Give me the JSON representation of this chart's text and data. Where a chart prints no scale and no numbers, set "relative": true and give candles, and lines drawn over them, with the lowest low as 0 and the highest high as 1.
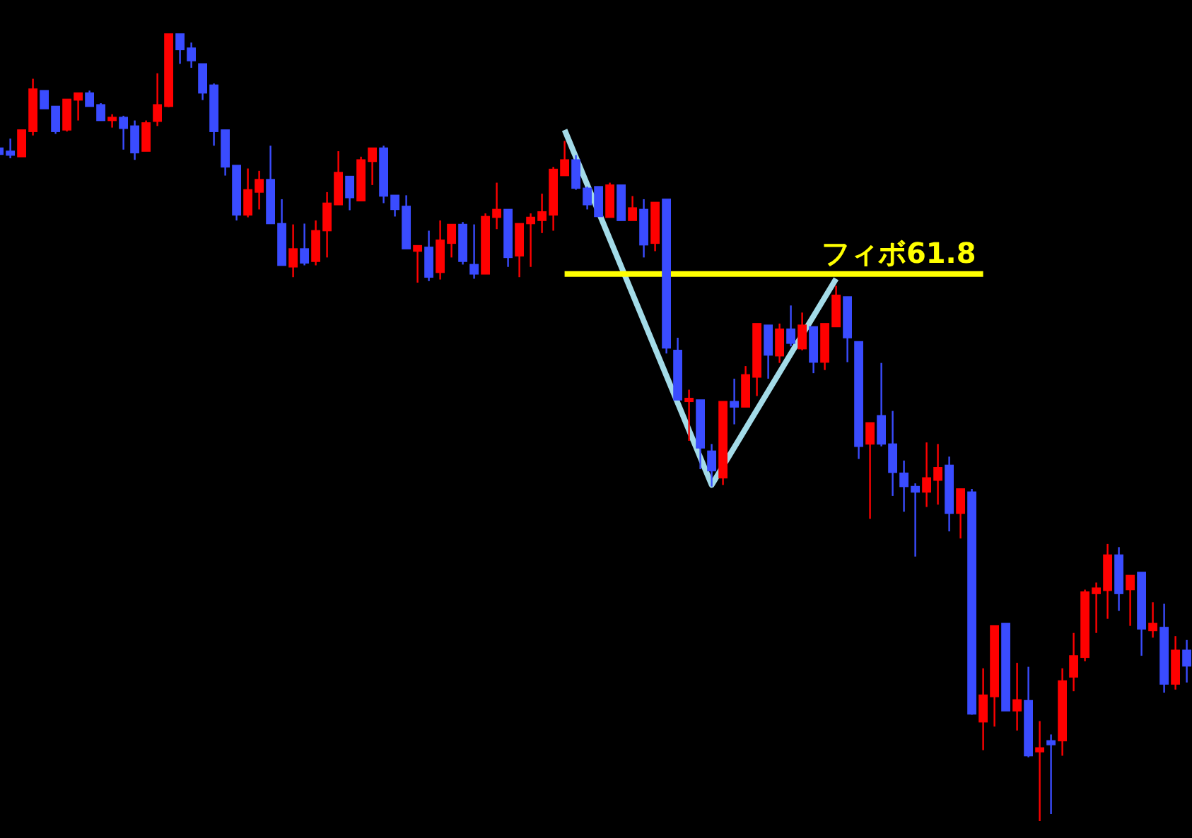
{
  "chart_data": {
    "type": "candlestick",
    "relative": true,
    "categories": [
      null,
      null,
      null,
      null,
      null,
      null,
      null,
      null,
      null,
      null,
      null,
      null,
      null,
      null,
      null,
      null,
      null,
      null,
      null,
      null,
      null,
      null,
      null,
      null,
      null,
      null,
      null,
      null,
      null,
      null,
      null,
      null,
      null,
      null,
      null,
      null,
      null,
      null,
      null,
      null,
      null,
      null,
      null,
      null,
      null,
      null,
      null,
      null,
      null,
      null,
      null,
      null,
      null,
      null,
      null,
      null,
      null,
      null,
      null,
      null,
      null,
      null,
      null,
      null,
      null,
      null,
      null,
      null,
      null,
      null,
      null,
      null,
      null,
      null,
      null,
      null,
      null,
      null,
      null,
      null,
      null,
      null,
      null,
      null,
      null,
      null,
      null,
      null,
      null,
      null,
      null,
      null,
      null,
      null,
      null,
      null,
      null,
      null,
      null,
      null,
      null,
      null,
      null,
      null,
      null,
      null
    ],
    "ohlc": [
      [
        0.855,
        0.856,
        0.846,
        0.847
      ],
      [
        0.851,
        0.867,
        0.842,
        0.846
      ],
      [
        0.844,
        0.878,
        0.844,
        0.878
      ],
      [
        0.876,
        0.943,
        0.871,
        0.93
      ],
      [
        0.928,
        0.928,
        0.905,
        0.905
      ],
      [
        0.908,
        0.908,
        0.873,
        0.876
      ],
      [
        0.878,
        0.917,
        0.876,
        0.917
      ],
      [
        0.916,
        0.925,
        0.89,
        0.925
      ],
      [
        0.925,
        0.928,
        0.908,
        0.908
      ],
      [
        0.91,
        0.912,
        0.89,
        0.89
      ],
      [
        0.89,
        0.898,
        0.881,
        0.894
      ],
      [
        0.894,
        0.896,
        0.853,
        0.88
      ],
      [
        0.883,
        0.89,
        0.84,
        0.849
      ],
      [
        0.851,
        0.89,
        0.851,
        0.887
      ],
      [
        0.889,
        0.95,
        0.883,
        0.91
      ],
      [
        0.908,
        1.0,
        0.907,
        1.0
      ],
      [
        1.0,
        1.0,
        0.962,
        0.98
      ],
      [
        0.982,
        0.989,
        0.957,
        0.966
      ],
      [
        0.962,
        0.962,
        0.916,
        0.925
      ],
      [
        0.935,
        0.937,
        0.858,
        0.876
      ],
      [
        0.878,
        0.878,
        0.82,
        0.831
      ],
      [
        0.833,
        0.833,
        0.763,
        0.77
      ],
      [
        0.77,
        0.829,
        0.767,
        0.802
      ],
      [
        0.799,
        0.826,
        0.777,
        0.815
      ],
      [
        0.815,
        0.858,
        0.759,
        0.759
      ],
      [
        0.759,
        0.79,
        0.706,
        0.706
      ],
      [
        0.704,
        0.758,
        0.691,
        0.727
      ],
      [
        0.727,
        0.759,
        0.706,
        0.709
      ],
      [
        0.711,
        0.763,
        0.706,
        0.75
      ],
      [
        0.75,
        0.799,
        0.716,
        0.785
      ],
      [
        0.783,
        0.851,
        0.783,
        0.824
      ],
      [
        0.819,
        0.819,
        0.776,
        0.792
      ],
      [
        0.788,
        0.844,
        0.788,
        0.84
      ],
      [
        0.838,
        0.855,
        0.808,
        0.855
      ],
      [
        0.855,
        0.858,
        0.785,
        0.794
      ],
      [
        0.795,
        0.795,
        0.768,
        0.777
      ],
      [
        0.781,
        0.795,
        0.727,
        0.727
      ],
      [
        0.724,
        0.731,
        0.684,
        0.731
      ],
      [
        0.729,
        0.75,
        0.686,
        0.691
      ],
      [
        0.697,
        0.763,
        0.688,
        0.738
      ],
      [
        0.734,
        0.758,
        0.716,
        0.758
      ],
      [
        0.758,
        0.761,
        0.707,
        0.711
      ],
      [
        0.707,
        0.758,
        0.689,
        0.695
      ],
      [
        0.695,
        0.772,
        0.695,
        0.768
      ],
      [
        0.767,
        0.811,
        0.752,
        0.777
      ],
      [
        0.777,
        0.777,
        0.704,
        0.716
      ],
      [
        0.718,
        0.759,
        0.691,
        0.759
      ],
      [
        0.759,
        0.772,
        0.704,
        0.767
      ],
      [
        0.763,
        0.797,
        0.747,
        0.774
      ],
      [
        0.77,
        0.831,
        0.75,
        0.828
      ],
      [
        0.82,
        0.864,
        0.82,
        0.84
      ],
      [
        0.84,
        0.846,
        0.802,
        0.804
      ],
      [
        0.804,
        0.806,
        0.777,
        0.783
      ],
      [
        0.806,
        0.806,
        0.768,
        0.768
      ],
      [
        0.767,
        0.811,
        0.767,
        0.808
      ],
      [
        0.808,
        0.808,
        0.763,
        0.763
      ],
      [
        0.763,
        0.794,
        0.763,
        0.779
      ],
      [
        0.777,
        0.79,
        0.716,
        0.732
      ],
      [
        0.734,
        0.786,
        0.724,
        0.786
      ],
      [
        0.79,
        0.79,
        0.594,
        0.601
      ],
      [
        0.598,
        0.614,
        0.535,
        0.535
      ],
      [
        0.533,
        0.548,
        0.483,
        0.537
      ],
      [
        0.535,
        0.535,
        0.447,
        0.474
      ],
      [
        0.47,
        0.479,
        0.425,
        0.445
      ],
      [
        0.436,
        0.533,
        0.427,
        0.533
      ],
      [
        0.533,
        0.562,
        0.504,
        0.526
      ],
      [
        0.526,
        0.578,
        0.526,
        0.567
      ],
      [
        0.564,
        0.632,
        0.54,
        0.632
      ],
      [
        0.63,
        0.63,
        0.562,
        0.592
      ],
      [
        0.591,
        0.632,
        0.582,
        0.625
      ],
      [
        0.625,
        0.655,
        0.603,
        0.607
      ],
      [
        0.6,
        0.646,
        0.598,
        0.63
      ],
      [
        0.628,
        0.628,
        0.569,
        0.583
      ],
      [
        0.583,
        0.632,
        0.573,
        0.632
      ],
      [
        0.628,
        0.68,
        0.628,
        0.668
      ],
      [
        0.666,
        0.666,
        0.583,
        0.614
      ],
      [
        0.609,
        0.609,
        0.46,
        0.476
      ],
      [
        0.479,
        0.506,
        0.384,
        0.506
      ],
      [
        0.515,
        0.582,
        0.476,
        0.479
      ],
      [
        0.479,
        0.521,
        0.413,
        0.443
      ],
      [
        0.442,
        0.458,
        0.393,
        0.425
      ],
      [
        0.425,
        0.429,
        0.336,
        0.418
      ],
      [
        0.418,
        0.481,
        0.399,
        0.436
      ],
      [
        0.433,
        0.479,
        0.402,
        0.449
      ],
      [
        0.452,
        0.463,
        0.368,
        0.391
      ],
      [
        0.391,
        0.422,
        0.359,
        0.422
      ],
      [
        0.418,
        0.422,
        0.135,
        0.136
      ],
      [
        0.126,
        0.194,
        0.09,
        0.16
      ],
      [
        0.158,
        0.248,
        0.12,
        0.248
      ],
      [
        0.251,
        0.251,
        0.14,
        0.14
      ],
      [
        0.14,
        0.201,
        0.115,
        0.154
      ],
      [
        0.153,
        0.196,
        0.081,
        0.083
      ],
      [
        0.088,
        0.127,
        0.0,
        0.093
      ],
      [
        0.102,
        0.11,
        0.009,
        0.097
      ],
      [
        0.102,
        0.194,
        0.083,
        0.178
      ],
      [
        0.183,
        0.239,
        0.165,
        0.21
      ],
      [
        0.208,
        0.294,
        0.203,
        0.291
      ],
      [
        0.289,
        0.303,
        0.239,
        0.296
      ],
      [
        0.293,
        0.352,
        0.257,
        0.338
      ],
      [
        0.338,
        0.348,
        0.267,
        0.289
      ],
      [
        0.294,
        0.312,
        0.248,
        0.312
      ],
      [
        0.316,
        0.316,
        0.21,
        0.244
      ],
      [
        0.242,
        0.278,
        0.233,
        0.251
      ],
      [
        0.246,
        0.276,
        0.163,
        0.174
      ],
      [
        0.174,
        0.235,
        0.167,
        0.217
      ],
      [
        0.217,
        0.23,
        0.176,
        0.197
      ]
    ],
    "colors": [
      "#3a4cff",
      "#3a4cff",
      "#ff0000",
      "#ff0000",
      "#3a4cff",
      "#3a4cff",
      "#ff0000",
      "#ff0000",
      "#3a4cff",
      "#3a4cff",
      "#ff0000",
      "#3a4cff",
      "#3a4cff",
      "#ff0000",
      "#ff0000",
      "#ff0000",
      "#3a4cff",
      "#3a4cff",
      "#3a4cff",
      "#3a4cff",
      "#3a4cff",
      "#3a4cff",
      "#ff0000",
      "#ff0000",
      "#3a4cff",
      "#3a4cff",
      "#ff0000",
      "#3a4cff",
      "#ff0000",
      "#ff0000",
      "#ff0000",
      "#3a4cff",
      "#ff0000",
      "#ff0000",
      "#3a4cff",
      "#3a4cff",
      "#3a4cff",
      "#ff0000",
      "#3a4cff",
      "#ff0000",
      "#ff0000",
      "#3a4cff",
      "#3a4cff",
      "#ff0000",
      "#ff0000",
      "#3a4cff",
      "#ff0000",
      "#ff0000",
      "#ff0000",
      "#ff0000",
      "#ff0000",
      "#3a4cff",
      "#3a4cff",
      "#3a4cff",
      "#ff0000",
      "#3a4cff",
      "#ff0000",
      "#3a4cff",
      "#ff0000",
      "#3a4cff",
      "#3a4cff",
      "#ff0000",
      "#3a4cff",
      "#3a4cff",
      "#ff0000",
      "#3a4cff",
      "#ff0000",
      "#ff0000",
      "#3a4cff",
      "#ff0000",
      "#3a4cff",
      "#ff0000",
      "#3a4cff",
      "#ff0000",
      "#ff0000",
      "#3a4cff",
      "#3a4cff",
      "#ff0000",
      "#3a4cff",
      "#3a4cff",
      "#3a4cff",
      "#3a4cff",
      "#ff0000",
      "#ff0000",
      "#3a4cff",
      "#ff0000",
      "#3a4cff",
      "#ff0000",
      "#ff0000",
      "#3a4cff",
      "#ff0000",
      "#3a4cff",
      "#ff0000",
      "#3a4cff",
      "#ff0000",
      "#ff0000",
      "#ff0000",
      "#ff0000",
      "#ff0000",
      "#3a4cff",
      "#ff0000",
      "#3a4cff",
      "#ff0000",
      "#3a4cff",
      "#ff0000",
      "#3a4cff"
    ],
    "series": [
      {
        "type": "line",
        "color": "#a3dbe8",
        "values": [
          null,
          null,
          null,
          null,
          null,
          null,
          null,
          null,
          null,
          null,
          null,
          null,
          null,
          null,
          null,
          null,
          null,
          null,
          null,
          null,
          null,
          null,
          null,
          null,
          null,
          null,
          null,
          null,
          null,
          null,
          null,
          null,
          null,
          null,
          null,
          null,
          null,
          null,
          null,
          null,
          null,
          null,
          null,
          null,
          null,
          null,
          null,
          null,
          null,
          null,
          0.878,
          null,
          null,
          null,
          null,
          null,
          null,
          null,
          null,
          null,
          null,
          null,
          null,
          0.427,
          null,
          null,
          null,
          null,
          null,
          null,
          null,
          null,
          null,
          null,
          0.689,
          null,
          null,
          null,
          null,
          null,
          null,
          null,
          null,
          null,
          null,
          null,
          null,
          null,
          null,
          null,
          null,
          null,
          null,
          null,
          null,
          null,
          null,
          null,
          null,
          null,
          null,
          null,
          null,
          null,
          null,
          null
        ]
      },
      {
        "type": "line",
        "name": "フィボ61.8",
        "color": "#ffff00",
        "values": [
          null,
          null,
          null,
          null,
          null,
          null,
          null,
          null,
          null,
          null,
          null,
          null,
          null,
          null,
          null,
          null,
          null,
          null,
          null,
          null,
          null,
          null,
          null,
          null,
          null,
          null,
          null,
          null,
          null,
          null,
          null,
          null,
          null,
          null,
          null,
          null,
          null,
          null,
          null,
          null,
          null,
          null,
          null,
          null,
          null,
          null,
          null,
          null,
          null,
          null,
          0.695,
          0.695,
          0.695,
          0.695,
          0.695,
          0.695,
          0.695,
          0.695,
          0.695,
          0.695,
          0.695,
          0.695,
          0.695,
          0.695,
          0.695,
          0.695,
          0.695,
          0.695,
          0.695,
          0.695,
          0.695,
          0.695,
          0.695,
          0.695,
          0.695,
          0.695,
          0.695,
          0.695,
          0.695,
          0.695,
          0.695,
          0.695,
          0.695,
          0.695,
          0.695,
          0.695,
          0.695,
          0.695,
          null,
          null,
          null,
          null,
          null,
          null,
          null,
          null,
          null,
          null,
          null,
          null,
          null,
          null,
          null,
          null,
          null,
          null
        ]
      }
    ]
  }
}
